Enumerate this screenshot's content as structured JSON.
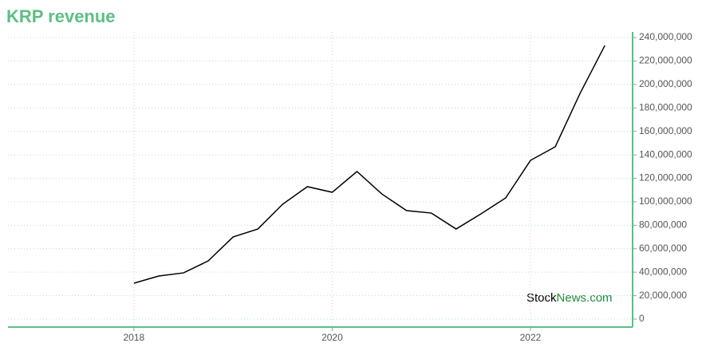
{
  "chart_data": {
    "type": "line",
    "title": "KRP revenue",
    "x": [
      2018,
      2018.25,
      2018.5,
      2018.75,
      2019,
      2019.25,
      2019.5,
      2019.75,
      2020,
      2020.25,
      2020.5,
      2020.75,
      2021,
      2021.25,
      2021.5,
      2021.75,
      2022,
      2022.25,
      2022.5,
      2022.75
    ],
    "series": [
      {
        "name": "KRP revenue",
        "color": "#000000",
        "values": [
          30600000,
          36700000,
          39400000,
          49600000,
          70000000,
          76800000,
          97900000,
          112900000,
          108100000,
          125800000,
          106700000,
          92500000,
          90400000,
          76800000,
          89700000,
          103300000,
          135300000,
          146900000,
          192400000,
          233200000
        ]
      }
    ],
    "xlim": [
      2016.73,
      2023.03
    ],
    "xticks": [
      2018,
      2020,
      2022
    ],
    "ylim": [
      -6800000,
      244800000
    ],
    "yticks": [
      0,
      {
        "value": 20000000,
        "label": "20,000,000"
      },
      {
        "value": 40000000,
        "label": "40,000,000"
      },
      {
        "value": 60000000,
        "label": "60,000,000"
      },
      {
        "value": 80000000,
        "label": "80,000,000"
      },
      {
        "value": 100000000,
        "label": "100,000,000"
      },
      {
        "value": 120000000,
        "label": "120,000,000"
      },
      {
        "value": 140000000,
        "label": "140,000,000"
      },
      {
        "value": 160000000,
        "label": "160,000,000"
      },
      {
        "value": 180000000,
        "label": "180,000,000"
      },
      {
        "value": 200000000,
        "label": "200,000,000"
      },
      {
        "value": 220000000,
        "label": "220,000,000"
      },
      {
        "value": 240000000,
        "label": "240,000,000"
      }
    ],
    "grid": true,
    "axis_color": "#5cbf84",
    "watermark": {
      "brand": "Stock",
      "suffix": "News.com"
    }
  }
}
